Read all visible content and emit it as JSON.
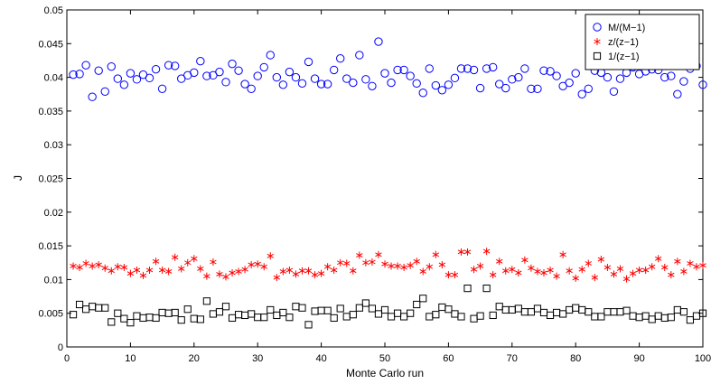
{
  "chart_data": {
    "type": "scatter",
    "title": "",
    "xlabel": "Monte Carlo run",
    "ylabel": "J",
    "xlim": [
      0,
      100
    ],
    "ylim": [
      0,
      0.05
    ],
    "x_ticks": [
      0,
      10,
      20,
      30,
      40,
      50,
      60,
      70,
      80,
      90,
      100
    ],
    "y_ticks": [
      0,
      0.005,
      0.01,
      0.015,
      0.02,
      0.025,
      0.03,
      0.035,
      0.04,
      0.045,
      0.05
    ],
    "x_tick_labels": [
      "0",
      "10",
      "20",
      "30",
      "40",
      "50",
      "60",
      "70",
      "80",
      "90",
      "100"
    ],
    "y_tick_labels": [
      "0",
      "0.005",
      "0.01",
      "0.015",
      "0.02",
      "0.025",
      "0.03",
      "0.035",
      "0.04",
      "0.045",
      "0.05"
    ],
    "grid": false,
    "legend_position": "top-right",
    "x": [
      1,
      2,
      3,
      4,
      5,
      6,
      7,
      8,
      9,
      10,
      11,
      12,
      13,
      14,
      15,
      16,
      17,
      18,
      19,
      20,
      21,
      22,
      23,
      24,
      25,
      26,
      27,
      28,
      29,
      30,
      31,
      32,
      33,
      34,
      35,
      36,
      37,
      38,
      39,
      40,
      41,
      42,
      43,
      44,
      45,
      46,
      47,
      48,
      49,
      50,
      51,
      52,
      53,
      54,
      55,
      56,
      57,
      58,
      59,
      60,
      61,
      62,
      63,
      64,
      65,
      66,
      67,
      68,
      69,
      70,
      71,
      72,
      73,
      74,
      75,
      76,
      77,
      78,
      79,
      80,
      81,
      82,
      83,
      84,
      85,
      86,
      87,
      88,
      89,
      90,
      91,
      92,
      93,
      94,
      95,
      96,
      97,
      98,
      99,
      100
    ],
    "series": [
      {
        "name": "M/(M−1)",
        "marker": "circle",
        "color": "#0000ff",
        "values": [
          0.0404,
          0.0405,
          0.0418,
          0.0371,
          0.041,
          0.0379,
          0.0416,
          0.0398,
          0.0389,
          0.0406,
          0.0397,
          0.0404,
          0.0399,
          0.0412,
          0.0383,
          0.0418,
          0.0417,
          0.0398,
          0.0403,
          0.0407,
          0.0424,
          0.0402,
          0.0403,
          0.0408,
          0.0393,
          0.042,
          0.041,
          0.039,
          0.0383,
          0.0402,
          0.0415,
          0.0433,
          0.04,
          0.0389,
          0.0408,
          0.04,
          0.0391,
          0.0423,
          0.0398,
          0.039,
          0.039,
          0.0411,
          0.0428,
          0.0398,
          0.0392,
          0.0433,
          0.0397,
          0.0387,
          0.0453,
          0.0406,
          0.0392,
          0.0411,
          0.0411,
          0.0402,
          0.0391,
          0.0377,
          0.0413,
          0.0388,
          0.0381,
          0.0389,
          0.0399,
          0.0413,
          0.0413,
          0.0411,
          0.0384,
          0.0413,
          0.0415,
          0.039,
          0.0384,
          0.0397,
          0.04,
          0.0413,
          0.0383,
          0.0383,
          0.041,
          0.0409,
          0.0402,
          0.0387,
          0.0392,
          0.0406,
          0.0375,
          0.0383,
          0.041,
          0.0407,
          0.04,
          0.0379,
          0.0398,
          0.0407,
          0.0415,
          0.0405,
          0.0409,
          0.0412,
          0.0411,
          0.04,
          0.0402,
          0.0375,
          0.0394,
          0.0413,
          0.0417,
          0.0389
        ]
      },
      {
        "name": "z/(z−1)",
        "marker": "asterisk",
        "color": "#ff0000",
        "values": [
          0.012,
          0.0118,
          0.0124,
          0.012,
          0.0122,
          0.0117,
          0.0113,
          0.0119,
          0.0118,
          0.0109,
          0.0114,
          0.0106,
          0.0114,
          0.0127,
          0.0114,
          0.0112,
          0.0133,
          0.0116,
          0.0125,
          0.0131,
          0.0116,
          0.0105,
          0.0126,
          0.0108,
          0.0104,
          0.011,
          0.0112,
          0.0115,
          0.0122,
          0.0123,
          0.0119,
          0.0135,
          0.0103,
          0.0112,
          0.0114,
          0.0108,
          0.0113,
          0.0113,
          0.0107,
          0.0109,
          0.0119,
          0.0114,
          0.0125,
          0.0124,
          0.0113,
          0.0136,
          0.0125,
          0.0126,
          0.0137,
          0.0123,
          0.012,
          0.012,
          0.0118,
          0.0121,
          0.0127,
          0.0112,
          0.0119,
          0.0137,
          0.0122,
          0.0107,
          0.0107,
          0.0141,
          0.0141,
          0.0115,
          0.012,
          0.0142,
          0.0107,
          0.0127,
          0.0113,
          0.0115,
          0.011,
          0.0129,
          0.0117,
          0.0112,
          0.011,
          0.0114,
          0.0105,
          0.0137,
          0.0113,
          0.0102,
          0.0115,
          0.0124,
          0.0103,
          0.013,
          0.0118,
          0.0108,
          0.0116,
          0.0101,
          0.0109,
          0.0114,
          0.0114,
          0.0119,
          0.0131,
          0.0118,
          0.0107,
          0.0127,
          0.0112,
          0.0124,
          0.0119,
          0.0121
        ]
      },
      {
        "name": "1/(z−1)",
        "marker": "square",
        "color": "#000000",
        "values": [
          0.0048,
          0.0063,
          0.0056,
          0.006,
          0.0058,
          0.0058,
          0.0037,
          0.005,
          0.0042,
          0.0036,
          0.0046,
          0.0043,
          0.0044,
          0.0043,
          0.0051,
          0.005,
          0.0051,
          0.004,
          0.0056,
          0.0042,
          0.0041,
          0.0068,
          0.0049,
          0.0052,
          0.006,
          0.0043,
          0.0048,
          0.0047,
          0.0049,
          0.0044,
          0.0044,
          0.0055,
          0.0047,
          0.0051,
          0.0044,
          0.006,
          0.0058,
          0.0033,
          0.0053,
          0.0054,
          0.0054,
          0.0043,
          0.0057,
          0.0045,
          0.0048,
          0.0058,
          0.0065,
          0.0057,
          0.0049,
          0.0055,
          0.0045,
          0.005,
          0.0045,
          0.005,
          0.0063,
          0.0072,
          0.0045,
          0.0048,
          0.0059,
          0.0056,
          0.0049,
          0.0045,
          0.0087,
          0.0042,
          0.0046,
          0.0087,
          0.0047,
          0.006,
          0.0055,
          0.0055,
          0.0057,
          0.0052,
          0.0052,
          0.0057,
          0.0051,
          0.0047,
          0.0051,
          0.0049,
          0.0055,
          0.0058,
          0.0055,
          0.0052,
          0.0045,
          0.0045,
          0.0052,
          0.0052,
          0.0052,
          0.0054,
          0.0046,
          0.0044,
          0.0046,
          0.0041,
          0.0046,
          0.0043,
          0.0044,
          0.0055,
          0.0052,
          0.004,
          0.0046,
          0.005
        ]
      }
    ]
  }
}
